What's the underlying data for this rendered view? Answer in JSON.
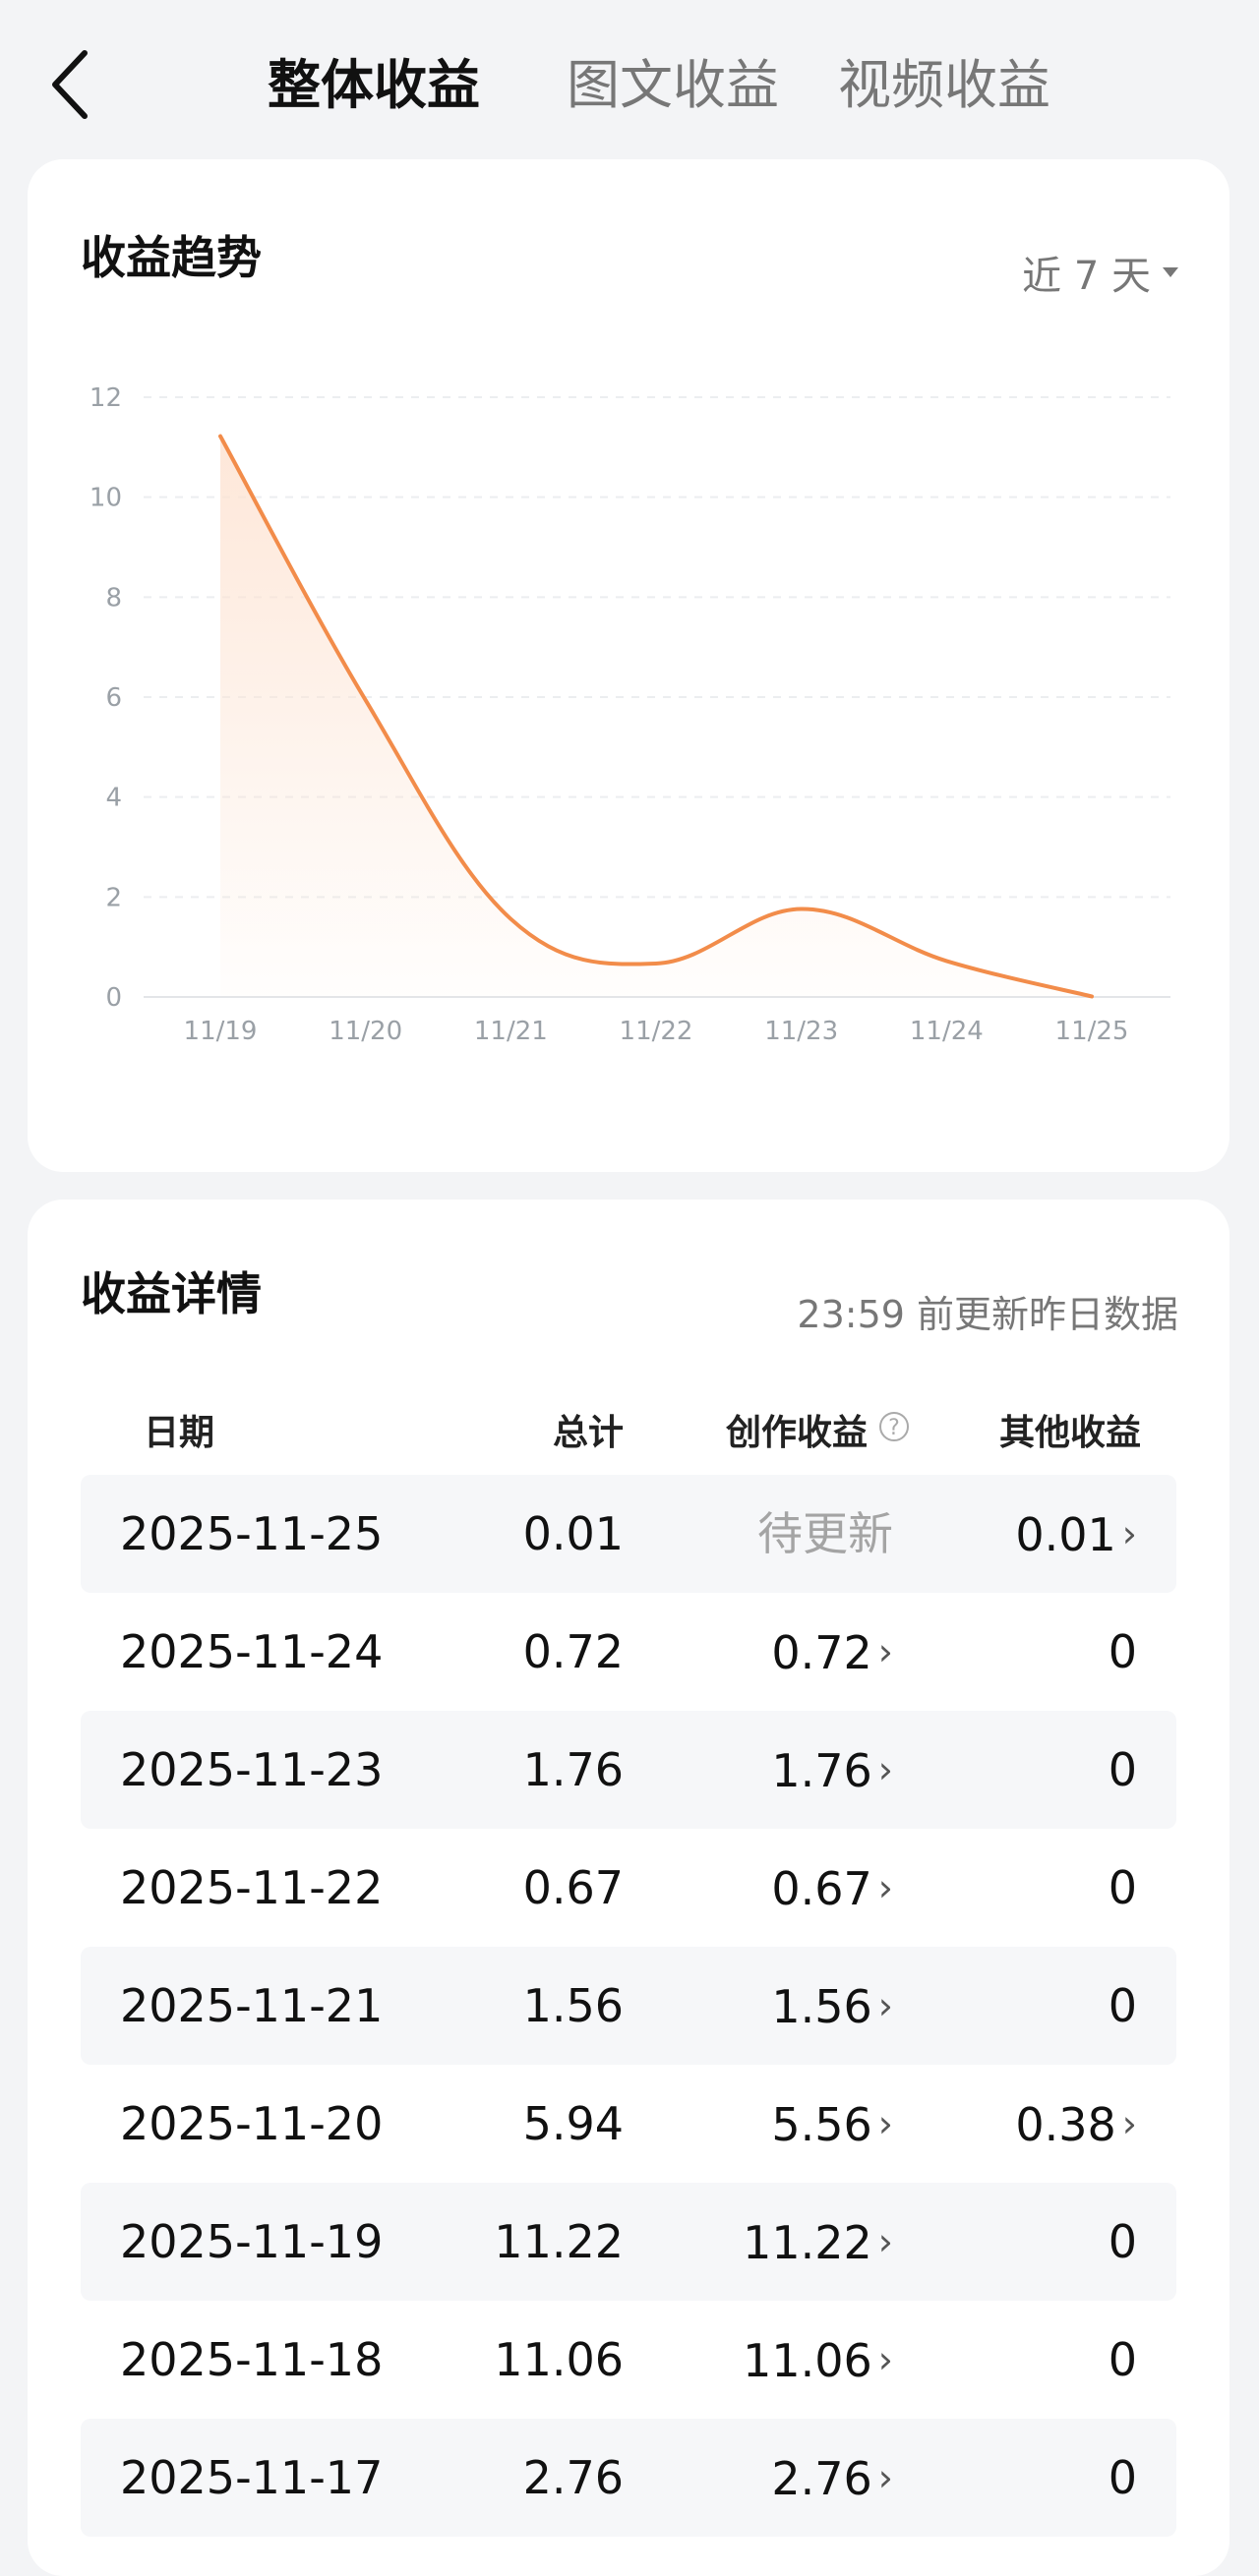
{
  "tabs": [
    {
      "label": "整体收益",
      "active": true
    },
    {
      "label": "图文收益",
      "active": false
    },
    {
      "label": "视频收益",
      "active": false
    }
  ],
  "trend": {
    "title": "收益趋势",
    "range_label": "近 7 天"
  },
  "chart_data": {
    "type": "area",
    "x": [
      "11/19",
      "11/20",
      "11/21",
      "11/22",
      "11/23",
      "11/24",
      "11/25"
    ],
    "series": [
      {
        "values": [
          11.22,
          5.94,
          1.56,
          0.67,
          1.76,
          0.72,
          0.01
        ]
      }
    ],
    "yticks": [
      0,
      2,
      4,
      6,
      8,
      10,
      12
    ],
    "ylim": [
      0,
      12
    ],
    "grid": true,
    "line_color": "#f28c4a",
    "fill_color": "#fde3d2"
  },
  "details": {
    "title": "收益详情",
    "update_note": "23:59 前更新昨日数据",
    "columns": {
      "date": "日期",
      "total": "总计",
      "create": "创作收益",
      "other": "其他收益"
    },
    "rows": [
      {
        "date": "2025-11-25",
        "total": "0.01",
        "create": "待更新",
        "other": "0.01"
      },
      {
        "date": "2025-11-24",
        "total": "0.72",
        "create": "0.72",
        "other": "0"
      },
      {
        "date": "2025-11-23",
        "total": "1.76",
        "create": "1.76",
        "other": "0"
      },
      {
        "date": "2025-11-22",
        "total": "0.67",
        "create": "0.67",
        "other": "0"
      },
      {
        "date": "2025-11-21",
        "total": "1.56",
        "create": "1.56",
        "other": "0"
      },
      {
        "date": "2025-11-20",
        "total": "5.94",
        "create": "5.56",
        "other": "0.38"
      },
      {
        "date": "2025-11-19",
        "total": "11.22",
        "create": "11.22",
        "other": "0"
      },
      {
        "date": "2025-11-18",
        "total": "11.06",
        "create": "11.06",
        "other": "0"
      },
      {
        "date": "2025-11-17",
        "total": "2.76",
        "create": "2.76",
        "other": "0"
      }
    ]
  }
}
